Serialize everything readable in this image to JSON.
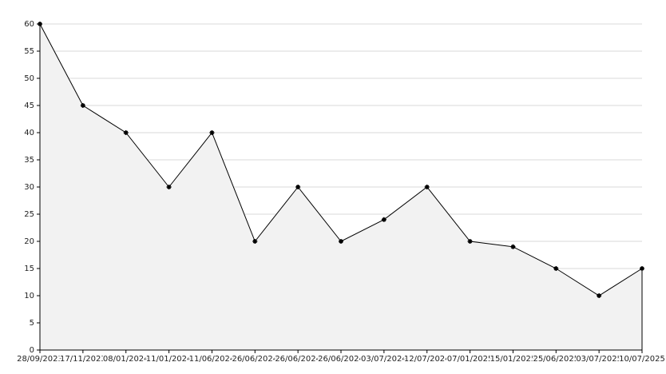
{
  "chart_data": {
    "type": "area",
    "categories": [
      "28/09/2023",
      "17/11/2023",
      "08/01/2024",
      "11/01/2024",
      "11/06/2024",
      "26/06/2024",
      "26/06/2024",
      "26/06/2024",
      "03/07/2024",
      "12/07/2024",
      "07/01/2025",
      "15/01/2025",
      "25/06/2025",
      "03/07/2025",
      "10/07/2025"
    ],
    "values": [
      60,
      45,
      40,
      30,
      40,
      20,
      30,
      20,
      24,
      30,
      20,
      19,
      15,
      10,
      15
    ],
    "color": "#000000",
    "fill": "#f2f2f2",
    "ylim": [
      0,
      60
    ],
    "yticks": [
      0,
      5,
      10,
      15,
      20,
      25,
      30,
      35,
      40,
      45,
      50,
      55,
      60
    ],
    "grid": true
  }
}
